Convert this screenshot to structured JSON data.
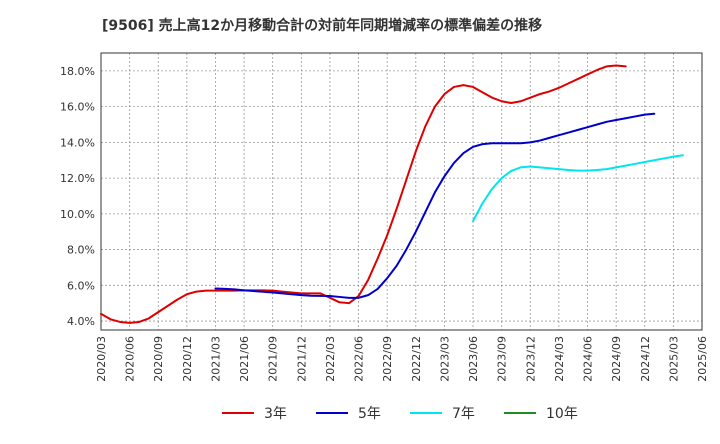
{
  "chart_data": {
    "type": "line",
    "title": "[9506]  売上高12か月移動合計の対前年同期増減率の標準偏差の推移",
    "xlabel": "",
    "ylabel": "",
    "ylim": [
      3.5,
      19.0
    ],
    "yticks": [
      4.0,
      6.0,
      8.0,
      10.0,
      12.0,
      14.0,
      16.0,
      18.0
    ],
    "ytick_labels": [
      "4.0%",
      "6.0%",
      "8.0%",
      "10.0%",
      "12.0%",
      "14.0%",
      "16.0%",
      "18.0%"
    ],
    "x_tick_labels": [
      "2020/03",
      "2020/06",
      "2020/09",
      "2020/12",
      "2021/03",
      "2021/06",
      "2021/09",
      "2021/12",
      "2022/03",
      "2022/06",
      "2022/09",
      "2022/12",
      "2023/03",
      "2023/06",
      "2023/09",
      "2023/12",
      "2024/03",
      "2024/06",
      "2024/09",
      "2024/12",
      "2025/03",
      "2025/06"
    ],
    "grid": true,
    "legend_position": "bottom",
    "series": [
      {
        "name": "3年",
        "color": "#dd0000",
        "start_index": 0,
        "values": [
          4.4,
          4.1,
          3.95,
          3.9,
          3.95,
          4.15,
          4.5,
          4.85,
          5.2,
          5.5,
          5.65,
          5.7,
          5.7,
          5.7,
          5.7,
          5.72,
          5.72,
          5.72,
          5.7,
          5.65,
          5.6,
          5.55,
          5.55,
          5.55,
          5.3,
          5.05,
          5.0,
          5.4,
          6.3,
          7.5,
          8.8,
          10.3,
          11.9,
          13.5,
          14.9,
          16.0,
          16.7,
          17.1,
          17.2,
          17.1,
          16.8,
          16.5,
          16.3,
          16.2,
          16.3,
          16.5,
          16.7,
          16.85,
          17.05,
          17.3,
          17.55,
          17.8,
          18.05,
          18.25,
          18.3,
          18.25
        ]
      },
      {
        "name": "5年",
        "color": "#0000cc",
        "start_index": 12,
        "values": [
          5.82,
          5.8,
          5.77,
          5.72,
          5.68,
          5.64,
          5.6,
          5.55,
          5.5,
          5.45,
          5.42,
          5.41,
          5.4,
          5.35,
          5.3,
          5.3,
          5.45,
          5.8,
          6.4,
          7.1,
          8.0,
          9.0,
          10.1,
          11.2,
          12.1,
          12.85,
          13.4,
          13.75,
          13.9,
          13.95,
          13.95,
          13.95,
          13.95,
          14.0,
          14.1,
          14.25,
          14.4,
          14.55,
          14.7,
          14.85,
          15.0,
          15.15,
          15.25,
          15.35,
          15.45,
          15.55,
          15.6
        ]
      },
      {
        "name": "7年",
        "color": "#00e5ee",
        "start_index": 39,
        "values": [
          9.6,
          10.6,
          11.4,
          12.0,
          12.4,
          12.6,
          12.65,
          12.6,
          12.55,
          12.5,
          12.45,
          12.42,
          12.42,
          12.45,
          12.5,
          12.6,
          12.7,
          12.8,
          12.9,
          13.0,
          13.1,
          13.2,
          13.28
        ]
      },
      {
        "name": "10年",
        "color": "#228b22",
        "start_index": 0,
        "values": []
      }
    ]
  }
}
